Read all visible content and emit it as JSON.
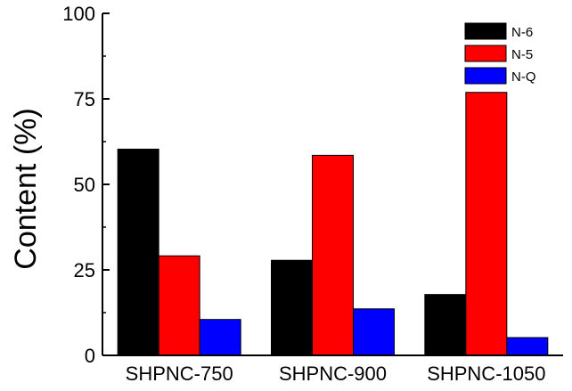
{
  "chart_data": {
    "type": "bar",
    "categories": [
      "SHPNC-750",
      "SHPNC-900",
      "SHPNC-1050"
    ],
    "series": [
      {
        "name": "N-6",
        "color": "#000000",
        "values": [
          60.3,
          27.8,
          17.8
        ]
      },
      {
        "name": "N-5",
        "color": "#ff0000",
        "values": [
          29.1,
          58.5,
          76.9
        ]
      },
      {
        "name": "N-Q",
        "color": "#0000ff",
        "values": [
          10.5,
          13.6,
          5.2
        ]
      }
    ],
    "ylabel": "Content (%)",
    "xlabel": "",
    "ylim": [
      0,
      100
    ],
    "yticks": [
      0,
      25,
      50,
      75,
      100
    ],
    "grid": false,
    "legend_position": "top-right"
  }
}
